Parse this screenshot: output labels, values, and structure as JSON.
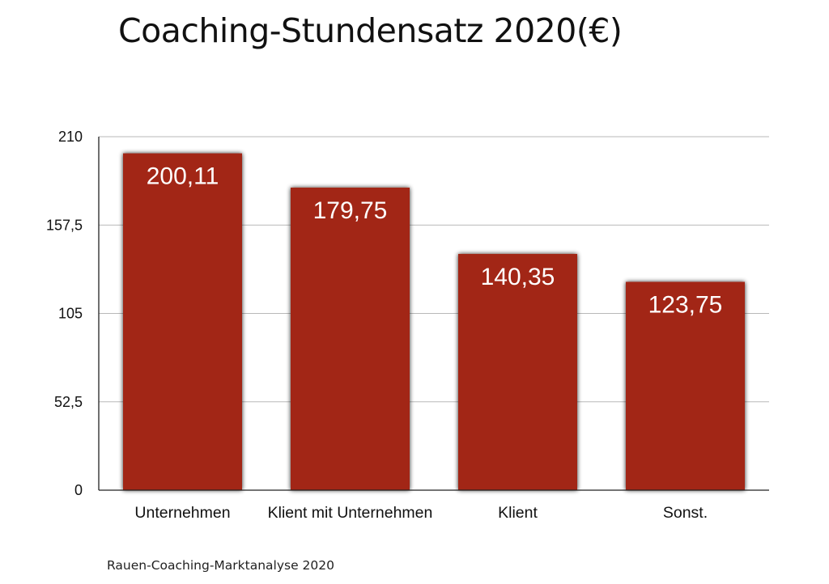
{
  "title": "Coaching-Stundensatz 2020(€)",
  "source": "Rauen-Coaching-Marktanalyse 2020",
  "colors": {
    "bar": "#a22716",
    "grid": "#b8b8b8",
    "axis": "#222222"
  },
  "chart_data": {
    "type": "bar",
    "title": "Coaching-Stundensatz 2020(€)",
    "xlabel": "",
    "ylabel": "",
    "categories": [
      "Unternehmen",
      "Klient mit Unternehmen",
      "Klient",
      "Sonst."
    ],
    "values": [
      200.11,
      179.75,
      140.35,
      123.75
    ],
    "value_labels": [
      "200,11",
      "179,75",
      "140,35",
      "123,75"
    ],
    "ylim": [
      0,
      210
    ],
    "yticks": [
      0,
      52.5,
      105,
      157.5,
      210
    ],
    "ytick_labels": [
      "0",
      "52,5",
      "105",
      "157,5",
      "210"
    ],
    "grid": true,
    "legend": "none"
  }
}
